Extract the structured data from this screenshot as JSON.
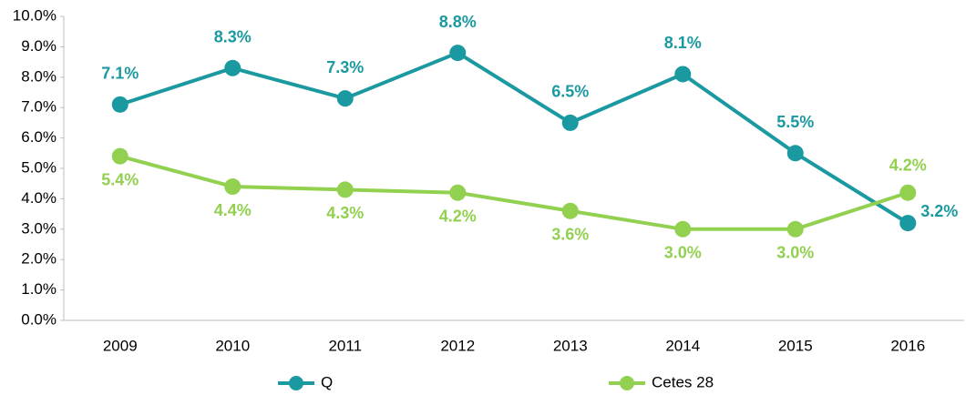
{
  "chart_data": {
    "type": "line",
    "categories": [
      "2009",
      "2010",
      "2011",
      "2012",
      "2013",
      "2014",
      "2015",
      "2016"
    ],
    "series": [
      {
        "name": "Q",
        "color": "#1b99a1",
        "values": [
          7.1,
          8.3,
          7.3,
          8.8,
          6.5,
          8.1,
          5.5,
          3.2
        ],
        "value_labels": [
          "7.1%",
          "8.3%",
          "7.3%",
          "8.8%",
          "6.5%",
          "8.1%",
          "5.5%",
          "3.2%"
        ]
      },
      {
        "name": "Cetes 28",
        "color": "#92d050",
        "values": [
          5.4,
          4.4,
          4.3,
          4.2,
          3.6,
          3.0,
          3.0,
          4.2
        ],
        "value_labels": [
          "5.4%",
          "4.4%",
          "4.3%",
          "4.2%",
          "3.6%",
          "3.0%",
          "3.0%",
          "4.2%"
        ]
      }
    ],
    "ylim": [
      0,
      10
    ],
    "yticks": [
      {
        "value": 0,
        "label": "0.0%"
      },
      {
        "value": 1,
        "label": "1.0%"
      },
      {
        "value": 2,
        "label": "2.0%"
      },
      {
        "value": 3,
        "label": "3.0%"
      },
      {
        "value": 4,
        "label": "4.0%"
      },
      {
        "value": 5,
        "label": "5.0%"
      },
      {
        "value": 6,
        "label": "6.0%"
      },
      {
        "value": 7,
        "label": "7.0%"
      },
      {
        "value": 8,
        "label": "8.0%"
      },
      {
        "value": 9,
        "label": "9.0%"
      },
      {
        "value": 10,
        "label": "10.0%"
      }
    ],
    "grid": false,
    "legend": "bottom"
  }
}
